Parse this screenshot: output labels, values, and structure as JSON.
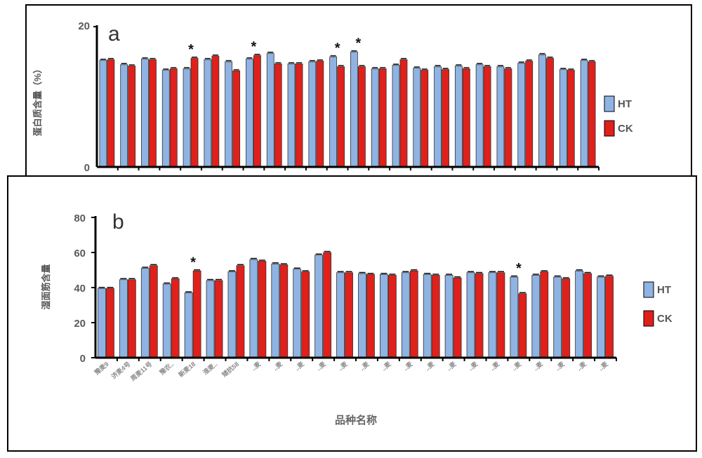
{
  "colors": {
    "HT": "#8fb3e2",
    "CK": "#e0201b",
    "axis": "#000000"
  },
  "chart_data": [
    {
      "type": "bar",
      "panel_label": "a",
      "ylabel": "蛋白质含量（%）",
      "ylim": [
        0,
        20
      ],
      "yticks": [
        0,
        20
      ],
      "legend": "right",
      "series_names": [
        "HT",
        "CK"
      ],
      "ht": [
        15.2,
        14.6,
        15.4,
        13.8,
        14.0,
        15.3,
        15.0,
        15.4,
        16.2,
        14.7,
        15.0,
        15.7,
        16.4,
        14.0,
        14.5,
        14.1,
        14.3,
        14.4,
        14.6,
        14.3,
        14.8,
        16.0,
        13.9,
        15.2
      ],
      "ck": [
        15.3,
        14.4,
        15.3,
        14.0,
        15.5,
        15.8,
        13.7,
        15.9,
        14.7,
        14.7,
        15.1,
        14.3,
        14.3,
        14.0,
        15.3,
        13.8,
        13.9,
        14.0,
        14.3,
        14.0,
        15.1,
        15.5,
        13.8,
        15.0
      ],
      "significant": [
        4,
        7,
        11,
        12
      ]
    },
    {
      "type": "bar",
      "panel_label": "b",
      "ylabel": "湿面筋含量",
      "xlabel": "品种名称",
      "ylim": [
        0,
        80
      ],
      "yticks": [
        0,
        20,
        40,
        60,
        80
      ],
      "legend": "right",
      "series_names": [
        "HT",
        "CK"
      ],
      "categories": [
        "豫麦9",
        "济麦4号",
        "周麦11号",
        "豫农..",
        "新麦18",
        "淮麦..",
        "矮抗58",
        "..麦",
        "..麦",
        "..麦",
        "..麦",
        "..麦",
        "..麦",
        "..麦",
        "..麦",
        "..麦",
        "..麦",
        "..麦",
        "..麦",
        "..麦",
        "..麦",
        "..麦",
        "..麦",
        "..麦"
      ],
      "ht": [
        39.5,
        44.5,
        51.0,
        42.0,
        37.0,
        44.0,
        49.0,
        56.0,
        53.5,
        50.5,
        58.5,
        48.5,
        48.0,
        47.5,
        48.5,
        47.5,
        47.0,
        48.5,
        48.5,
        46.0,
        47.0,
        46.0,
        49.5,
        46.0
      ],
      "ck": [
        39.5,
        44.5,
        52.5,
        45.0,
        49.5,
        44.0,
        52.5,
        55.0,
        53.0,
        49.0,
        60.0,
        48.5,
        47.5,
        47.0,
        49.5,
        47.0,
        45.5,
        48.0,
        48.5,
        36.5,
        49.0,
        45.0,
        48.0,
        46.5
      ],
      "significant": [
        4,
        19
      ]
    }
  ]
}
